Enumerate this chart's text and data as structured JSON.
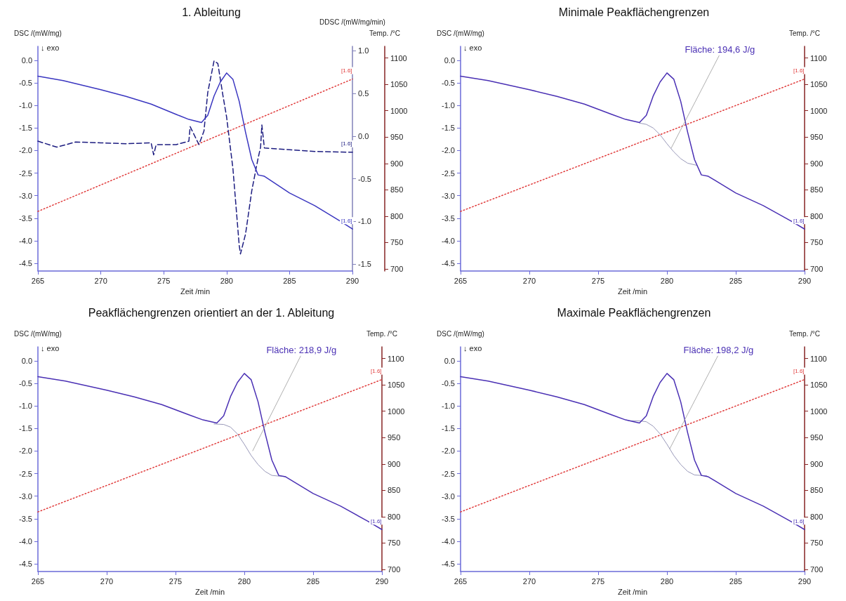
{
  "chart_data": [
    {
      "type": "line",
      "title": "1. Ableitung",
      "xlabel": "Zeit /min",
      "ylabel": "DSC /(mW/mg)",
      "y2label": "DDSC /(mW/mg/min)",
      "y3label": "Temp. /°C",
      "grid": false,
      "legend": false,
      "marker": "none",
      "xlim": [
        265,
        290
      ],
      "xticks": [
        265,
        270,
        275,
        280,
        285,
        290
      ],
      "ylim": [
        -4.67,
        0.31
      ],
      "yticks": [
        {
          "value": 0,
          "label": "0.0"
        },
        {
          "value": -0.5,
          "label": "-0.5"
        },
        {
          "value": -1,
          "label": "-1.0"
        },
        {
          "value": -1.5,
          "label": "-1.5"
        },
        {
          "value": -2,
          "label": "-2.0"
        },
        {
          "value": -2.5,
          "label": "-2.5"
        },
        {
          "value": -3,
          "label": "-3.0"
        },
        {
          "value": -3.5,
          "label": "-3.5"
        },
        {
          "value": -4,
          "label": "-4.0"
        },
        {
          "value": -4.5,
          "label": "-4.5"
        }
      ],
      "y2lim": [
        -1.58,
        1.05
      ],
      "y2ticks": [
        {
          "value": 1,
          "label": "1.0"
        },
        {
          "value": 0.5,
          "label": "0.5"
        },
        {
          "value": 0,
          "label": "0.0"
        },
        {
          "value": -0.5,
          "label": "-0.5"
        },
        {
          "value": -1,
          "label": "-1.0"
        },
        {
          "value": -1.5,
          "label": "-1.5"
        }
      ],
      "y3lim": [
        696,
        1122
      ],
      "y3ticks": [
        700,
        750,
        800,
        850,
        900,
        950,
        1000,
        1050,
        1100
      ],
      "annotations": [
        "↓ exo"
      ],
      "series": [
        {
          "name": "[1.6]",
          "color": "#3a36c0",
          "x": [
            265,
            267,
            270,
            272,
            274,
            276,
            277,
            278,
            278.5,
            279,
            279.5,
            280,
            280.5,
            281,
            281.5,
            282,
            282.5,
            283,
            285,
            287,
            289,
            290
          ],
          "values": [
            -0.35,
            -0.45,
            -0.65,
            -0.8,
            -0.97,
            -1.2,
            -1.31,
            -1.38,
            -1.22,
            -0.79,
            -0.48,
            -0.28,
            -0.42,
            -0.91,
            -1.59,
            -2.2,
            -2.54,
            -2.57,
            -2.94,
            -3.22,
            -3.56,
            -3.74
          ]
        },
        {
          "name": "[1.6]",
          "color": "#1c1c80",
          "axis": "y2",
          "line_style": "dashed",
          "x": [
            265,
            266.5,
            268,
            270,
            272,
            274,
            274.2,
            274.4,
            276,
            277,
            277.1,
            277.8,
            278.2,
            278.5,
            279,
            279.3,
            279.7,
            280,
            280.5,
            281,
            281.1,
            281.5,
            282,
            282.5,
            282.7,
            282.8,
            283,
            285,
            287,
            290
          ],
          "values": [
            -0.06,
            -0.13,
            -0.07,
            -0.08,
            -0.09,
            -0.08,
            -0.22,
            -0.1,
            -0.1,
            -0.06,
            0.11,
            -0.1,
            0.06,
            0.51,
            0.88,
            0.85,
            0.48,
            0.22,
            -0.38,
            -1.28,
            -1.38,
            -1.15,
            -0.64,
            -0.26,
            -0.13,
            0.13,
            -0.14,
            -0.16,
            -0.18,
            -0.19
          ]
        },
        {
          "name": "[1.6]",
          "color": "#e03a3a",
          "axis": "y3",
          "line_style": "dotted",
          "x": [
            265,
            290
          ],
          "values": [
            809,
            1060
          ]
        }
      ]
    },
    {
      "type": "line",
      "title": "Minimale Peakflächengrenzen",
      "xlabel": "Zeit /min",
      "ylabel": "DSC /(mW/mg)",
      "y2label": "Temp. /°C",
      "grid": false,
      "legend": false,
      "marker": "none",
      "xlim": [
        265,
        290
      ],
      "xticks": [
        265,
        270,
        275,
        280,
        285,
        290
      ],
      "ylim": [
        -4.67,
        0.31
      ],
      "yticks": [
        {
          "value": 0,
          "label": "0.0"
        },
        {
          "value": -0.5,
          "label": "-0.5"
        },
        {
          "value": -1,
          "label": "-1.0"
        },
        {
          "value": -1.5,
          "label": "-1.5"
        },
        {
          "value": -2,
          "label": "-2.0"
        },
        {
          "value": -2.5,
          "label": "-2.5"
        },
        {
          "value": -3,
          "label": "-3.0"
        },
        {
          "value": -3.5,
          "label": "-3.5"
        },
        {
          "value": -4,
          "label": "-4.0"
        },
        {
          "value": -4.5,
          "label": "-4.5"
        }
      ],
      "y2lim": [
        696,
        1122
      ],
      "y2ticks": [
        700,
        750,
        800,
        850,
        900,
        950,
        1000,
        1050,
        1100
      ],
      "annotations": [
        "↓ exo",
        {
          "text": "Fläche: 194,6 J/g",
          "x": 280.3,
          "y": -1.95
        }
      ],
      "series": [
        {
          "name": "[1.6]",
          "color": "#4a30b4",
          "x": [
            265,
            267,
            270,
            272,
            274,
            276,
            277,
            278,
            278.5,
            279,
            279.5,
            280,
            280.5,
            281,
            281.5,
            282,
            282.5,
            283,
            285,
            287,
            289,
            290
          ],
          "values": [
            -0.35,
            -0.45,
            -0.65,
            -0.8,
            -0.97,
            -1.2,
            -1.31,
            -1.38,
            -1.22,
            -0.79,
            -0.48,
            -0.28,
            -0.42,
            -0.91,
            -1.59,
            -2.2,
            -2.54,
            -2.57,
            -2.94,
            -3.22,
            -3.56,
            -3.74
          ]
        },
        {
          "color": "#8c8cb0",
          "x": [
            278,
            278.5,
            279,
            279.5,
            280,
            280.5,
            281,
            281.5,
            282.2
          ],
          "values": [
            -1.39,
            -1.42,
            -1.5,
            -1.65,
            -1.85,
            -2.03,
            -2.18,
            -2.28,
            -2.33
          ]
        },
        {
          "name": "[1.6]",
          "color": "#e03a3a",
          "axis": "y2",
          "line_style": "dotted",
          "x": [
            265,
            290
          ],
          "values": [
            809,
            1060
          ]
        }
      ]
    },
    {
      "type": "line",
      "title": "Peakflächengrenzen orientiert an der 1. Ableitung",
      "xlabel": "Zeit /min",
      "ylabel": "DSC /(mW/mg)",
      "y2label": "Temp. /°C",
      "grid": false,
      "legend": false,
      "marker": "none",
      "xlim": [
        265,
        290
      ],
      "xticks": [
        265,
        270,
        275,
        280,
        285,
        290
      ],
      "ylim": [
        -4.67,
        0.31
      ],
      "yticks": [
        {
          "value": 0,
          "label": "0.0"
        },
        {
          "value": -0.5,
          "label": "-0.5"
        },
        {
          "value": -1,
          "label": "-1.0"
        },
        {
          "value": -1.5,
          "label": "-1.5"
        },
        {
          "value": -2,
          "label": "-2.0"
        },
        {
          "value": -2.5,
          "label": "-2.5"
        },
        {
          "value": -3,
          "label": "-3.0"
        },
        {
          "value": -3.5,
          "label": "-3.5"
        },
        {
          "value": -4,
          "label": "-4.0"
        },
        {
          "value": -4.5,
          "label": "-4.5"
        }
      ],
      "y2lim": [
        696,
        1122
      ],
      "y2ticks": [
        700,
        750,
        800,
        850,
        900,
        950,
        1000,
        1050,
        1100
      ],
      "annotations": [
        "↓ exo",
        {
          "text": "Fläche: 218,9 J/g",
          "x": 280.6,
          "y": -2.0
        }
      ],
      "series": [
        {
          "name": "[1.6]",
          "color": "#4a30b4",
          "x": [
            265,
            267,
            270,
            272,
            274,
            276,
            277,
            278,
            278.5,
            279,
            279.5,
            280,
            280.5,
            281,
            281.5,
            282,
            282.5,
            283,
            285,
            287,
            289,
            290
          ],
          "values": [
            -0.35,
            -0.45,
            -0.65,
            -0.8,
            -0.97,
            -1.2,
            -1.31,
            -1.38,
            -1.22,
            -0.79,
            -0.48,
            -0.28,
            -0.42,
            -0.91,
            -1.59,
            -2.2,
            -2.54,
            -2.57,
            -2.94,
            -3.22,
            -3.56,
            -3.74
          ]
        },
        {
          "color": "#8c8cb0",
          "x": [
            277.8,
            278.5,
            279,
            279.5,
            280,
            280.5,
            281,
            281.5,
            282,
            283
          ],
          "values": [
            -1.4,
            -1.41,
            -1.47,
            -1.62,
            -1.85,
            -2.1,
            -2.3,
            -2.45,
            -2.54,
            -2.57
          ]
        },
        {
          "name": "[1.6]",
          "color": "#e03a3a",
          "axis": "y2",
          "line_style": "dotted",
          "x": [
            265,
            290
          ],
          "values": [
            809,
            1060
          ]
        }
      ]
    },
    {
      "type": "line",
      "title": "Maximale Peakflächengrenzen",
      "xlabel": "Zeit /min",
      "ylabel": "DSC /(mW/mg)",
      "y2label": "Temp. /°C",
      "grid": false,
      "legend": false,
      "marker": "none",
      "xlim": [
        265,
        290
      ],
      "xticks": [
        265,
        270,
        275,
        280,
        285,
        290
      ],
      "ylim": [
        -4.67,
        0.31
      ],
      "yticks": [
        {
          "value": 0,
          "label": "0.0"
        },
        {
          "value": -0.5,
          "label": "-0.5"
        },
        {
          "value": -1,
          "label": "-1.0"
        },
        {
          "value": -1.5,
          "label": "-1.5"
        },
        {
          "value": -2,
          "label": "-2.0"
        },
        {
          "value": -2.5,
          "label": "-2.5"
        },
        {
          "value": -3,
          "label": "-3.0"
        },
        {
          "value": -3.5,
          "label": "-3.5"
        },
        {
          "value": -4,
          "label": "-4.0"
        },
        {
          "value": -4.5,
          "label": "-4.5"
        }
      ],
      "y2lim": [
        696,
        1122
      ],
      "y2ticks": [
        700,
        750,
        800,
        850,
        900,
        950,
        1000,
        1050,
        1100
      ],
      "annotations": [
        "↓ exo",
        {
          "text": "Fläche: 198,2 J/g",
          "x": 280.2,
          "y": -1.95
        }
      ],
      "series": [
        {
          "name": "[1.6]",
          "color": "#4a30b4",
          "x": [
            265,
            267,
            270,
            272,
            274,
            276,
            277,
            278,
            278.5,
            279,
            279.5,
            280,
            280.5,
            281,
            281.5,
            282,
            282.5,
            283,
            285,
            287,
            289,
            290
          ],
          "values": [
            -0.35,
            -0.45,
            -0.65,
            -0.8,
            -0.97,
            -1.2,
            -1.31,
            -1.38,
            -1.22,
            -0.79,
            -0.48,
            -0.28,
            -0.42,
            -0.91,
            -1.59,
            -2.2,
            -2.54,
            -2.57,
            -2.94,
            -3.22,
            -3.56,
            -3.74
          ]
        },
        {
          "color": "#8c8cb0",
          "x": [
            277.2,
            278,
            278.5,
            279,
            279.5,
            280,
            280.5,
            281,
            281.5,
            282,
            282.9
          ],
          "values": [
            -1.33,
            -1.33,
            -1.35,
            -1.45,
            -1.62,
            -1.85,
            -2.1,
            -2.3,
            -2.45,
            -2.53,
            -2.55
          ]
        },
        {
          "name": "[1.6]",
          "color": "#e03a3a",
          "axis": "y2",
          "line_style": "dotted",
          "x": [
            265,
            290
          ],
          "values": [
            809,
            1060
          ]
        }
      ]
    }
  ]
}
